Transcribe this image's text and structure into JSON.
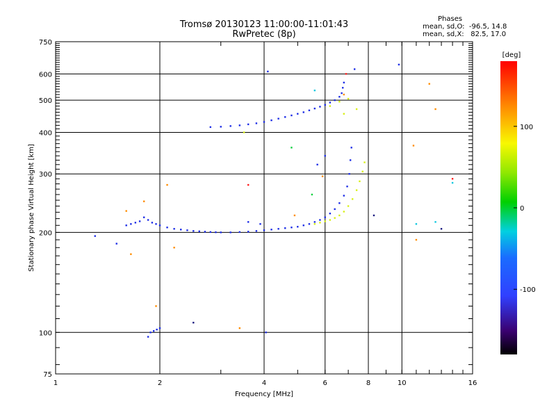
{
  "header": {
    "title": "Tromsø 20130123 11:00:00-11:01:43",
    "subtitle": "RwPretec (8p)",
    "phases_label": "Phases",
    "stats_o": "mean, sd,O:  -96.5, 14.8",
    "stats_x": "mean, sd,X:   82.5, 17.0"
  },
  "colorbar": {
    "unit": "[deg]",
    "range": [
      -180,
      180
    ],
    "ticks": [
      {
        "value": 100,
        "label": "100"
      },
      {
        "value": 0,
        "label": "0"
      },
      {
        "value": -100,
        "label": "-100"
      }
    ],
    "colors": {
      "blue": "#1f2fe6",
      "yellow": "#d8f01a"
    }
  },
  "chart_data": {
    "type": "scatter",
    "title": "Tromsø 20130123 11:00:00-11:01:43",
    "subtitle": "RwPretec (8p)",
    "xlabel": "Frequency [MHz]",
    "ylabel": "Stationary phase Virtual Height [km]",
    "xscale": "log",
    "yscale": "log",
    "xlim": [
      1,
      16
    ],
    "ylim": [
      75,
      750
    ],
    "grid": true,
    "xticks": [
      {
        "value": 1,
        "label": "1"
      },
      {
        "value": 2,
        "label": "2"
      },
      {
        "value": 4,
        "label": "4"
      },
      {
        "value": 6,
        "label": "6"
      },
      {
        "value": 8,
        "label": "8"
      },
      {
        "value": 10,
        "label": "10"
      },
      {
        "value": 16,
        "label": "16"
      }
    ],
    "yticks": [
      {
        "value": 75,
        "label": "75"
      },
      {
        "value": 100,
        "label": "100"
      },
      {
        "value": 200,
        "label": "200"
      },
      {
        "value": 300,
        "label": "300"
      },
      {
        "value": 400,
        "label": "400"
      },
      {
        "value": 500,
        "label": "500"
      },
      {
        "value": 600,
        "label": "600"
      },
      {
        "value": 750,
        "label": "750"
      }
    ],
    "series": [
      {
        "color": "#1f2fe6",
        "points": [
          [
            1.6,
            210
          ],
          [
            1.65,
            212
          ],
          [
            1.7,
            214
          ],
          [
            1.75,
            216
          ],
          [
            1.8,
            222
          ],
          [
            1.85,
            218
          ],
          [
            1.9,
            214
          ],
          [
            1.95,
            212
          ],
          [
            2.0,
            210
          ],
          [
            2.1,
            207
          ],
          [
            2.2,
            205
          ],
          [
            2.3,
            204
          ],
          [
            2.4,
            203
          ],
          [
            2.5,
            202
          ],
          [
            2.6,
            201.5
          ],
          [
            2.7,
            201
          ],
          [
            2.8,
            200.5
          ],
          [
            2.9,
            200.2
          ],
          [
            3.0,
            200
          ],
          [
            3.2,
            200
          ],
          [
            3.4,
            200.5
          ],
          [
            3.6,
            201
          ],
          [
            3.8,
            202
          ],
          [
            4.0,
            203
          ],
          [
            4.2,
            204
          ],
          [
            4.4,
            205
          ],
          [
            4.6,
            206
          ],
          [
            4.8,
            207
          ],
          [
            5.0,
            208
          ],
          [
            5.2,
            210
          ],
          [
            5.4,
            212
          ],
          [
            5.6,
            215
          ],
          [
            5.8,
            218
          ],
          [
            6.0,
            222
          ],
          [
            6.2,
            228
          ],
          [
            6.4,
            235
          ],
          [
            6.6,
            245
          ],
          [
            6.8,
            258
          ],
          [
            6.95,
            275
          ],
          [
            7.05,
            300
          ],
          [
            7.1,
            330
          ],
          [
            7.15,
            360
          ],
          [
            2.8,
            415
          ],
          [
            3.0,
            416
          ],
          [
            3.2,
            418
          ],
          [
            3.4,
            420
          ],
          [
            3.6,
            423
          ],
          [
            3.8,
            426
          ],
          [
            4.0,
            430
          ],
          [
            4.2,
            435
          ],
          [
            4.4,
            440
          ],
          [
            4.6,
            445
          ],
          [
            4.8,
            450
          ],
          [
            5.0,
            455
          ],
          [
            5.2,
            460
          ],
          [
            5.4,
            466
          ],
          [
            5.6,
            472
          ],
          [
            5.8,
            478
          ],
          [
            6.0,
            484
          ],
          [
            6.2,
            492
          ],
          [
            6.4,
            500
          ],
          [
            6.6,
            512
          ],
          [
            6.7,
            525
          ],
          [
            6.75,
            545
          ],
          [
            6.8,
            565
          ],
          [
            1.88,
            100
          ],
          [
            1.92,
            101
          ],
          [
            1.96,
            102
          ],
          [
            2.0,
            103
          ],
          [
            1.85,
            97
          ],
          [
            1.3,
            195
          ],
          [
            1.5,
            185
          ],
          [
            4.1,
            610
          ],
          [
            7.3,
            620
          ],
          [
            9.8,
            640
          ],
          [
            3.6,
            215
          ],
          [
            3.9,
            212
          ],
          [
            5.7,
            320
          ],
          [
            6.0,
            340
          ],
          [
            4.05,
            100
          ]
        ]
      },
      {
        "color": "#d8f01a",
        "points": [
          [
            5.6,
            212
          ],
          [
            5.8,
            214
          ],
          [
            6.0,
            216
          ],
          [
            6.2,
            218
          ],
          [
            6.4,
            221
          ],
          [
            6.6,
            225
          ],
          [
            6.8,
            231
          ],
          [
            7.0,
            240
          ],
          [
            7.2,
            252
          ],
          [
            7.4,
            268
          ],
          [
            7.55,
            285
          ],
          [
            7.7,
            305
          ],
          [
            7.8,
            325
          ],
          [
            6.2,
            480
          ],
          [
            6.6,
            495
          ],
          [
            7.0,
            505
          ],
          [
            7.4,
            470
          ],
          [
            3.5,
            400
          ],
          [
            6.8,
            455
          ]
        ]
      },
      {
        "color": "#ff8c00",
        "points": [
          [
            1.6,
            232
          ],
          [
            1.65,
            172
          ],
          [
            1.8,
            248
          ],
          [
            2.2,
            180
          ],
          [
            2.1,
            278
          ],
          [
            6.8,
            520
          ],
          [
            11,
            190
          ],
          [
            12,
            560
          ],
          [
            12.5,
            470
          ],
          [
            10.8,
            365
          ],
          [
            3.4,
            103
          ],
          [
            1.95,
            120
          ],
          [
            5.9,
            295
          ],
          [
            4.9,
            225
          ]
        ]
      },
      {
        "color": "#ff2020",
        "points": [
          [
            6.9,
            600
          ],
          [
            14,
            290
          ],
          [
            3.6,
            278
          ]
        ]
      },
      {
        "color": "#10c8e0",
        "points": [
          [
            5.6,
            535
          ],
          [
            14,
            282
          ],
          [
            12.5,
            215
          ],
          [
            11,
            212
          ]
        ]
      },
      {
        "color": "#10d040",
        "points": [
          [
            4.8,
            360
          ],
          [
            5.5,
            260
          ]
        ]
      },
      {
        "color": "#1a1a80",
        "points": [
          [
            2.5,
            107
          ],
          [
            13,
            205
          ],
          [
            8.3,
            225
          ]
        ]
      }
    ]
  }
}
